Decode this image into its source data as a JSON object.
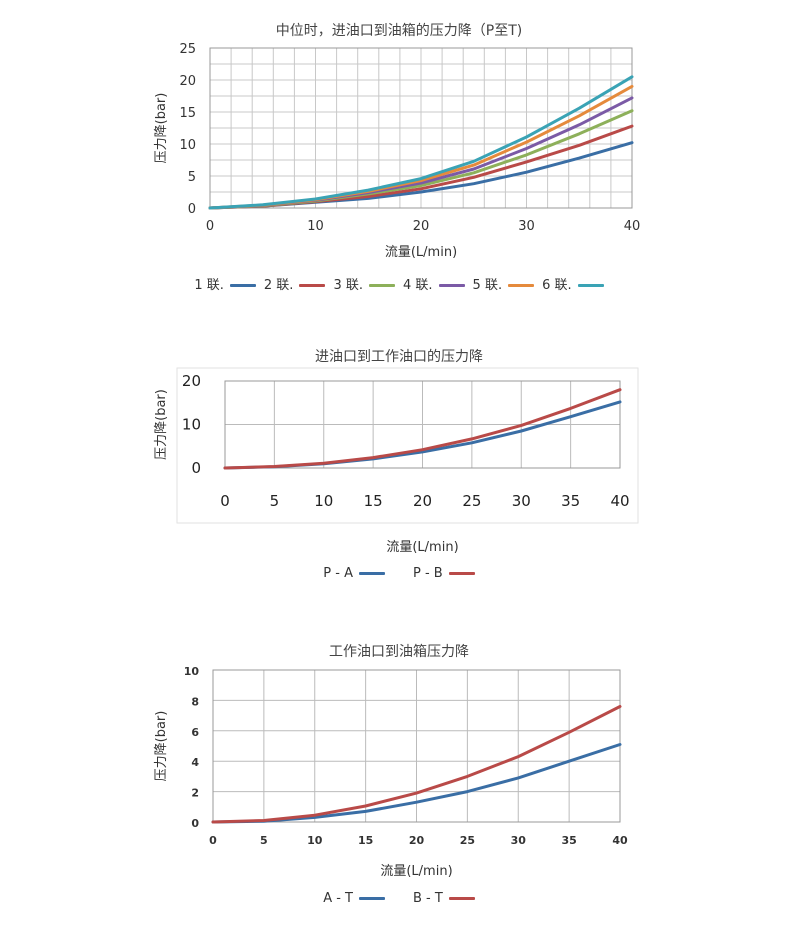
{
  "chart_data": [
    {
      "type": "line",
      "title": "中位时，进油口到油箱的压力降（P至T)",
      "xlabel": "流量(L/min)",
      "ylabel": "压力降(bar)",
      "xlim": [
        0,
        40
      ],
      "ylim": [
        0,
        25
      ],
      "xticks": [
        0,
        10,
        20,
        30,
        40
      ],
      "yticks": [
        0,
        5,
        10,
        15,
        20,
        25
      ],
      "grid": true,
      "legend_position": "bottom",
      "x": [
        0,
        5,
        10,
        15,
        20,
        25,
        30,
        35,
        40
      ],
      "series": [
        {
          "name": "1 联.",
          "color": "#3a6ea5",
          "values": [
            0,
            0.3,
            0.9,
            1.5,
            2.5,
            3.8,
            5.6,
            7.8,
            10.2
          ]
        },
        {
          "name": "2 联.",
          "color": "#b94a48",
          "values": [
            0,
            0.3,
            1.0,
            1.8,
            3.0,
            4.8,
            7.2,
            9.8,
            12.8
          ]
        },
        {
          "name": "3 联.",
          "color": "#8db05a",
          "values": [
            0,
            0.35,
            1.1,
            2.2,
            3.5,
            5.5,
            8.3,
            11.6,
            15.2
          ]
        },
        {
          "name": "4 联.",
          "color": "#7b5aa6",
          "values": [
            0,
            0.4,
            1.2,
            2.4,
            3.9,
            6.1,
            9.3,
            13.0,
            17.2
          ]
        },
        {
          "name": "5 联.",
          "color": "#e58a3c",
          "values": [
            0,
            0.45,
            1.3,
            2.6,
            4.3,
            6.7,
            10.3,
            14.4,
            19.0
          ]
        },
        {
          "name": "6 联.",
          "color": "#3aa3b5",
          "values": [
            0,
            0.5,
            1.4,
            2.8,
            4.6,
            7.3,
            11.1,
            15.6,
            20.5
          ]
        }
      ]
    },
    {
      "type": "line",
      "title": "进油口到工作油口的压力降",
      "xlabel": "流量(L/min)",
      "ylabel": "压力降(bar)",
      "xlim": [
        0,
        40
      ],
      "ylim": [
        0,
        20
      ],
      "xticks": [
        0,
        5,
        10,
        15,
        20,
        25,
        30,
        35,
        40
      ],
      "yticks": [
        0,
        10,
        20
      ],
      "grid": true,
      "legend_position": "bottom",
      "x": [
        0,
        5,
        10,
        15,
        20,
        25,
        30,
        35,
        40
      ],
      "series": [
        {
          "name": "P - A",
          "color": "#3a6ea5",
          "values": [
            0,
            0.3,
            1.0,
            2.1,
            3.7,
            5.8,
            8.5,
            11.8,
            15.2
          ]
        },
        {
          "name": "P - B",
          "color": "#b94a48",
          "values": [
            0,
            0.35,
            1.1,
            2.4,
            4.2,
            6.7,
            9.8,
            13.7,
            18.0
          ]
        }
      ]
    },
    {
      "type": "line",
      "title": "工作油口到油箱压力降",
      "xlabel": "流量(L/min)",
      "ylabel": "压力降(bar)",
      "xlim": [
        0,
        40
      ],
      "ylim": [
        0,
        10
      ],
      "xticks": [
        0,
        5,
        10,
        15,
        20,
        25,
        30,
        35,
        40
      ],
      "yticks": [
        0,
        2,
        4,
        6,
        8,
        10
      ],
      "grid": true,
      "legend_position": "bottom",
      "x": [
        0,
        5,
        10,
        15,
        20,
        25,
        30,
        35,
        40
      ],
      "series": [
        {
          "name": "A - T",
          "color": "#3a6ea5",
          "values": [
            0,
            0.05,
            0.3,
            0.7,
            1.3,
            2.0,
            2.9,
            4.0,
            5.1
          ]
        },
        {
          "name": "B - T",
          "color": "#b94a48",
          "values": [
            0,
            0.1,
            0.45,
            1.05,
            1.9,
            3.0,
            4.3,
            5.9,
            7.6
          ]
        }
      ]
    }
  ]
}
